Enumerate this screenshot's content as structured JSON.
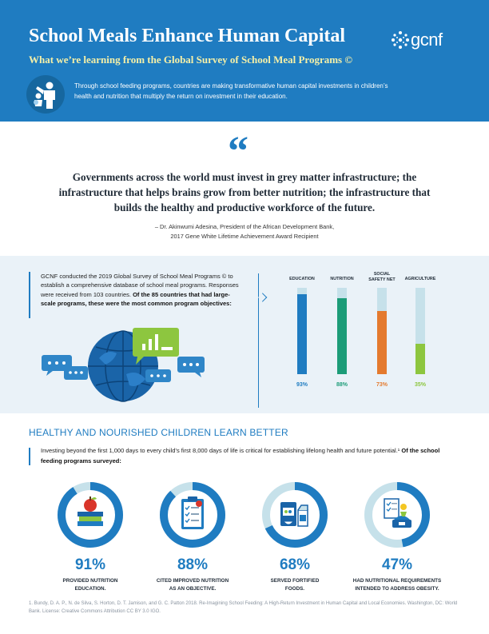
{
  "header": {
    "title": "School Meals Enhance Human Capital",
    "subtitle": "What we’re learning from the Global Survey of School Meal Programs ©",
    "logo_text": "gcnf",
    "intro": "Through school feeding programs, countries are making transformative human capital investments in children’s health and nutrition that multiply the return on investment in their education.",
    "colors": {
      "primary": "#1f7cc1",
      "accent_text": "#f5f0a8"
    }
  },
  "quote": {
    "mark": "“",
    "text": "Governments across the world must invest in grey matter infrastructure; the infrastructure that helps brains grow from better nutrition; the infrastructure that builds the healthy and productive workforce of the future.",
    "attribution_line1": "– Dr. Akinwumi Adesina, President of the African Development Bank,",
    "attribution_line2": "2017 Gene White Lifetime Achievement Award Recipient"
  },
  "survey": {
    "text_plain": "GCNF conducted the 2019 Global Survey of School Meal Programs © to establish a comprehensive database of school meal programs. Responses were received from 103 countries.",
    "text_bold": "Of the 85 countries that had large-scale programs, these were the most common program objectives:"
  },
  "chart_data": {
    "type": "bar",
    "categories": [
      "EDUCATION",
      "NUTRITION",
      "SOCIAL SAFETY NET",
      "AGRICULTURE"
    ],
    "values": [
      93,
      88,
      73,
      35
    ],
    "value_labels": [
      "93%",
      "88%",
      "73%",
      "35%"
    ],
    "colors": [
      "#1f7cc1",
      "#1c9c78",
      "#e47a2e",
      "#8dc63f"
    ],
    "track_color": "#c6e1ea",
    "ylim": [
      0,
      100
    ]
  },
  "healthy": {
    "title": "HEALTHY AND NOURISHED CHILDREN LEARN BETTER",
    "text_plain": "Investing beyond the first 1,000 days to every child’s first 8,000 days of life is critical for establishing lifelong health and future potential.¹",
    "text_bold": " Of the school feeding programs surveyed:",
    "stats": [
      {
        "value": 91,
        "pct": "91%",
        "line1": "PROVIDED NUTRITION",
        "line2": "EDUCATION.",
        "icon": "books-apple-icon"
      },
      {
        "value": 88,
        "pct": "88%",
        "line1": "CITED IMPROVED NUTRITION",
        "line2": "AS AN OBJECTIVE.",
        "icon": "clipboard-icon"
      },
      {
        "value": 68,
        "pct": "68%",
        "line1": "SERVED FORTIFIED",
        "line2": "FOODS.",
        "icon": "fortified-food-icon"
      },
      {
        "value": 47,
        "pct": "47%",
        "line1": "HAD NUTRITIONAL REQUIREMENTS",
        "line2": "INTENDED TO ADDRESS OBESITY.",
        "icon": "scale-checklist-icon"
      }
    ]
  },
  "footnote": "1. Bundy, D. A. P., N. de Silva, S. Horton, D. T. Jamison, and G. C. Patton 2018. Re-Imagining School Feeding: A High-Return Investment in Human Capital and Local Economies. Washington, DC: World Bank. License: Creative Commons Attribution CC BY 3.0 IGO."
}
